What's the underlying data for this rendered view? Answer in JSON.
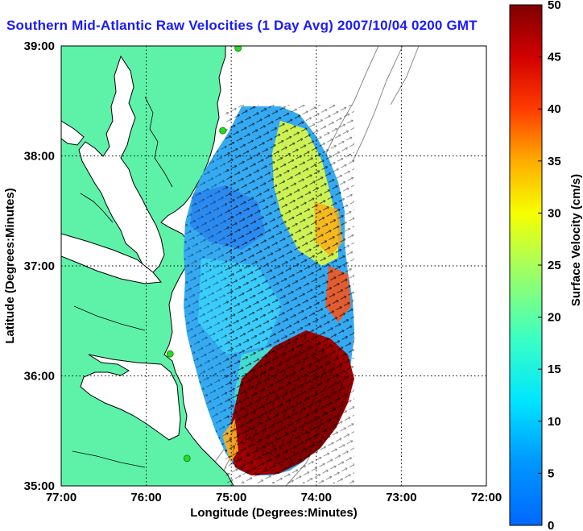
{
  "title": "Southern Mid-Atlantic Raw Velocities (1 Day Avg) 2007/10/04 0200 GMT",
  "map": {
    "x_axis_label": "Longitude (Degrees:Minutes)",
    "y_axis_label": "Latitude (Degrees:Minutes)",
    "x_ticks": [
      "77:00",
      "76:00",
      "75:00",
      "74:00",
      "73:00",
      "72:00"
    ],
    "y_ticks": [
      "39:00",
      "38:00",
      "37:00",
      "36:00",
      "35:00"
    ],
    "lon_range_west": [
      77,
      72
    ],
    "lat_range": [
      35,
      39
    ],
    "grid": true,
    "colors": {
      "land": "#5ef2a8",
      "water": "#ffffff",
      "coastline": "#000000",
      "bathymetry": "#8c8c8c",
      "grid": "#000000",
      "station_marker": "#22dd22"
    },
    "stations_lon_lat": [
      [
        74.92,
        38.98
      ],
      [
        75.1,
        38.23
      ],
      [
        75.72,
        36.2
      ],
      [
        75.52,
        35.25
      ]
    ]
  },
  "colorbar": {
    "label": "Surface Velocity (cm/s)",
    "ticks": [
      "0",
      "5",
      "10",
      "15",
      "20",
      "25",
      "30",
      "35",
      "40",
      "45",
      "50"
    ],
    "range": [
      0,
      50
    ],
    "colormap": "jet"
  }
}
